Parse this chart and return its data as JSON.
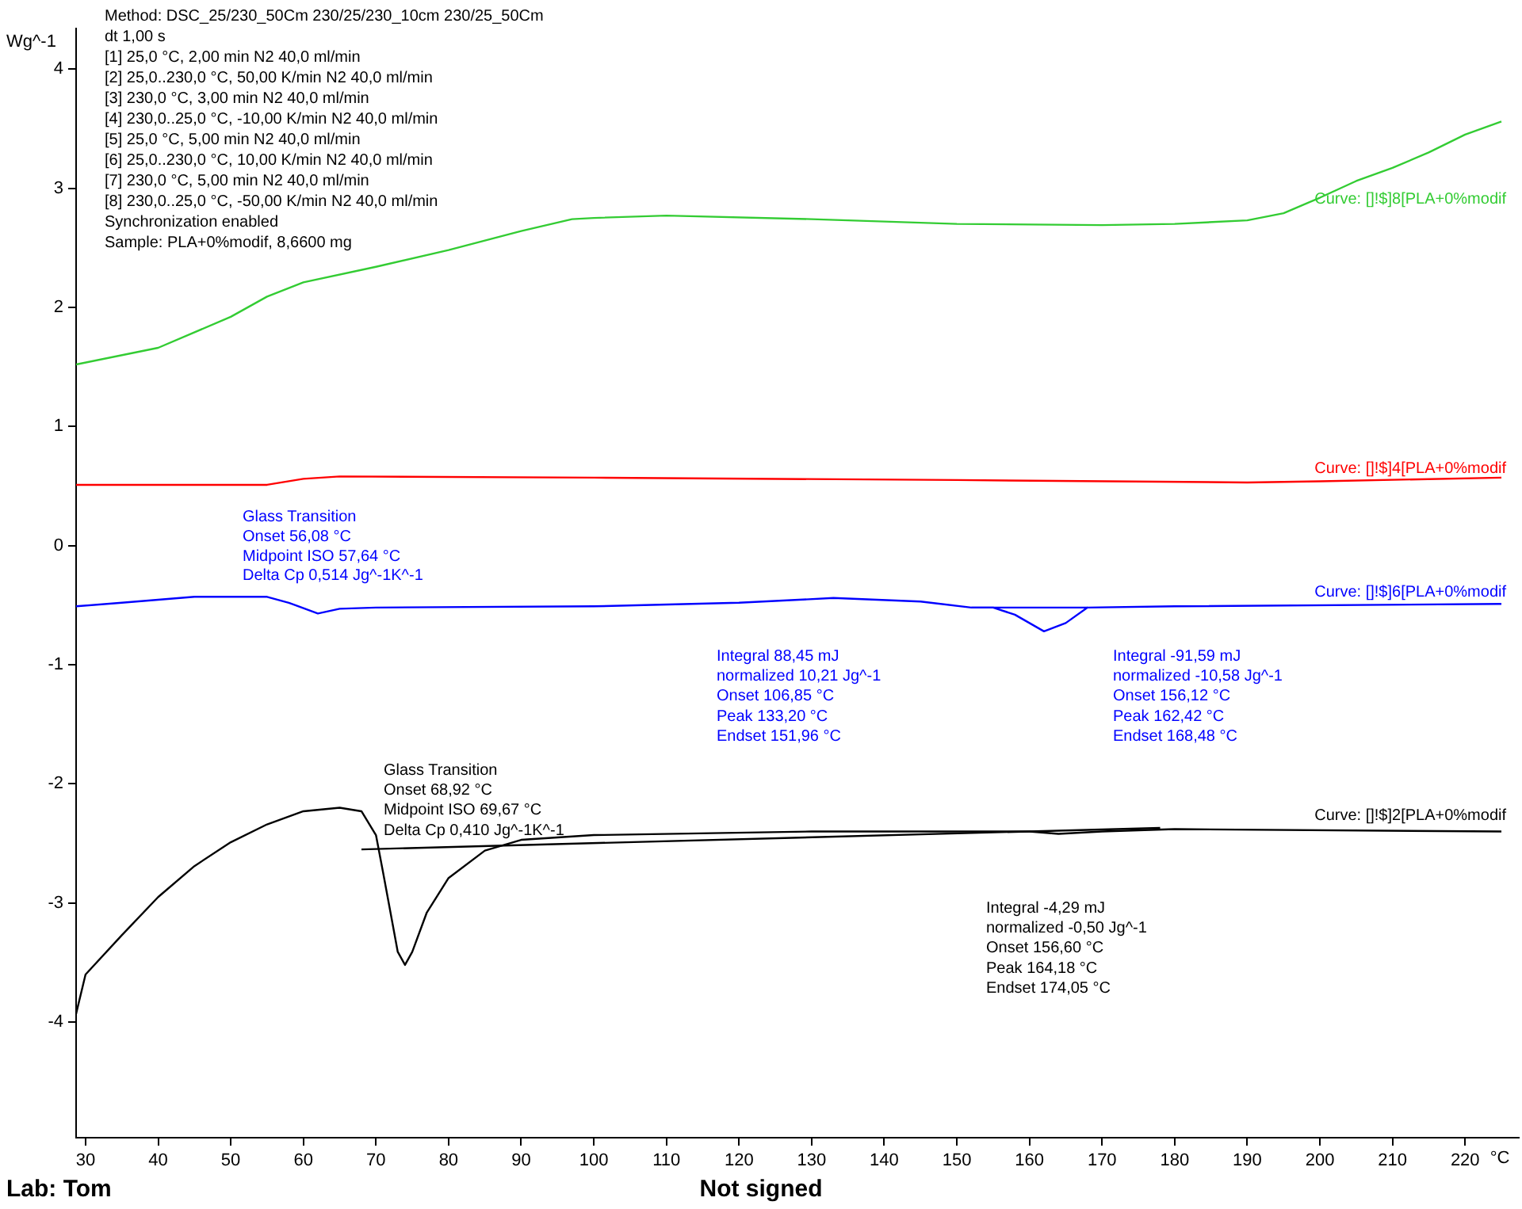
{
  "chart_data": {
    "type": "line",
    "ylabel": "Wg^-1",
    "xlabel": "°C",
    "xlim": [
      28.7,
      227.4
    ],
    "xticks": [
      30,
      40,
      50,
      60,
      70,
      80,
      90,
      100,
      110,
      120,
      130,
      140,
      150,
      160,
      170,
      180,
      190,
      200,
      210,
      220
    ],
    "ylim": [
      -4.97,
      4.34
    ],
    "yticks": [
      -4,
      -3,
      -2,
      -1,
      0,
      1,
      2,
      3,
      4
    ],
    "grid": false,
    "legend": false,
    "marker": "none",
    "line_style": "solid",
    "series": [
      {
        "name": "Curve: []!$]8[PLA+0%modif",
        "color": "#33cc33",
        "x": [
          28.7,
          40,
          50,
          55,
          60,
          70,
          80,
          90,
          97,
          100,
          110,
          130,
          150,
          170,
          180,
          190,
          195,
          200,
          205,
          210,
          215,
          220,
          225
        ],
        "values": [
          1.52,
          1.66,
          1.92,
          2.09,
          2.21,
          2.34,
          2.48,
          2.64,
          2.74,
          2.75,
          2.77,
          2.74,
          2.7,
          2.69,
          2.7,
          2.73,
          2.79,
          2.92,
          3.06,
          3.17,
          3.3,
          3.45,
          3.56
        ]
      },
      {
        "name": "Curve: []!$]4[PLA+0%modif",
        "color": "#ff0000",
        "x": [
          28.7,
          55,
          60,
          65,
          100,
          150,
          190,
          200,
          225
        ],
        "values": [
          0.51,
          0.51,
          0.56,
          0.58,
          0.57,
          0.55,
          0.53,
          0.54,
          0.57
        ]
      },
      {
        "name": "Curve: []!$]6[PLA+0%modif",
        "color": "#0000ff",
        "x": [
          28.7,
          35,
          45,
          55,
          58,
          62,
          65,
          70,
          100,
          120,
          133,
          145,
          152,
          155,
          158,
          162,
          165,
          168,
          180,
          225
        ],
        "values": [
          -0.51,
          -0.48,
          -0.43,
          -0.43,
          -0.48,
          -0.57,
          -0.53,
          -0.52,
          -0.51,
          -0.48,
          -0.44,
          -0.47,
          -0.52,
          -0.52,
          -0.58,
          -0.72,
          -0.65,
          -0.52,
          -0.51,
          -0.49
        ]
      },
      {
        "name": "Curve: []!$]2[PLA+0%modif",
        "color": "#000000",
        "x": [
          28.7,
          30,
          35,
          40,
          45,
          50,
          55,
          60,
          65,
          68,
          70,
          71,
          72,
          73,
          74,
          75,
          77,
          80,
          85,
          90,
          100,
          130,
          150,
          160,
          164,
          170,
          180,
          225
        ],
        "values": [
          -3.93,
          -3.6,
          -3.27,
          -2.95,
          -2.69,
          -2.49,
          -2.34,
          -2.23,
          -2.2,
          -2.23,
          -2.43,
          -2.75,
          -3.08,
          -3.41,
          -3.52,
          -3.41,
          -3.08,
          -2.79,
          -2.56,
          -2.47,
          -2.43,
          -2.4,
          -2.4,
          -2.4,
          -2.42,
          -2.4,
          -2.38,
          -2.4
        ]
      },
      {
        "color": "#000000",
        "x": [
          68,
          178
        ],
        "values": [
          -2.55,
          -2.37
        ]
      },
      {
        "color": "#0000ff",
        "x": [
          152,
          168
        ],
        "values": [
          -0.52,
          -0.52
        ]
      }
    ],
    "annotations": [
      "Method: DSC_25/230_50Cm 230/25/230_10cm 230/25_50Cm",
      "dt 1,00 s",
      "[1] 25,0 °C, 2,00 min N2 40,0 ml/min",
      "[2] 25,0..230,0 °C, 50,00 K/min N2 40,0 ml/min",
      "[3] 230,0 °C, 3,00 min N2 40,0 ml/min",
      "[4] 230,0..25,0 °C, -10,00 K/min N2 40,0 ml/min",
      "[5] 25,0 °C, 5,00 min N2 40,0 ml/min",
      "[6] 25,0..230,0 °C, 10,00 K/min N2 40,0 ml/min",
      "[7] 230,0 °C, 5,00 min N2 40,0 ml/min",
      "[8] 230,0..25,0 °C, -50,00 K/min N2 40,0 ml/min",
      "Synchronization enabled",
      "Sample: PLA+0%modif, 8,6600 mg",
      "Glass Transition",
      "Onset 56,08 °C",
      "Midpoint ISO 57,64 °C",
      "Delta Cp 0,514 Jg^-1K^-1",
      "Integral 88,45 mJ",
      "normalized 10,21 Jg^-1",
      "Onset 106,85 °C",
      "Peak 133,20 °C",
      "Endset 151,96 °C",
      "Integral -91,59 mJ",
      "normalized -10,58 Jg^-1",
      "Onset 156,12 °C",
      "Peak 162,42 °C",
      "Endset 168,48 °C",
      "Glass Transition",
      "Onset 68,92 °C",
      "Midpoint ISO 69,67 °C",
      "Delta Cp 0,410 Jg^-1K^-1",
      "Integral -4,29 mJ",
      "normalized -0,50 Jg^-1",
      "Onset 156,60 °C",
      "Peak 164,18 °C",
      "Endset 174,05 °C",
      "Lab: Tom",
      "Not signed"
    ]
  }
}
